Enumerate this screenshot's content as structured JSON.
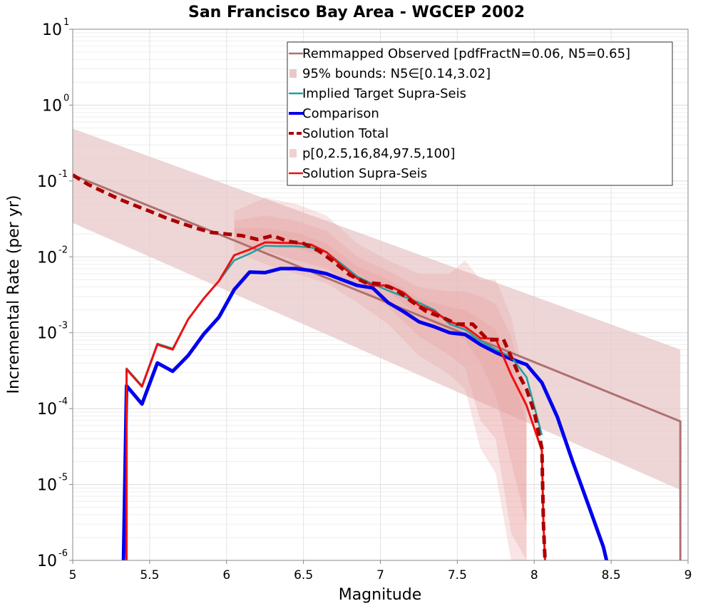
{
  "chart_data": {
    "type": "line",
    "title": "San Francisco Bay Area - WGCEP 2002",
    "xlabel": "Magnitude",
    "ylabel": "Incremental Rate (per yr)",
    "xlim": [
      5,
      9
    ],
    "ylim_log10": [
      -6,
      1
    ],
    "y_scale": "log",
    "grid": true,
    "legend_position": "top-right",
    "x_ticks": [
      "5",
      "5.5",
      "6",
      "6.5",
      "7",
      "7.5",
      "8",
      "8.5",
      "9"
    ],
    "y_ticks": [
      {
        "base": "10",
        "exp": "1"
      },
      {
        "base": "10",
        "exp": "0"
      },
      {
        "base": "10",
        "exp": "-1"
      },
      {
        "base": "10",
        "exp": "-2"
      },
      {
        "base": "10",
        "exp": "-3"
      },
      {
        "base": "10",
        "exp": "-4"
      },
      {
        "base": "10",
        "exp": "-5"
      },
      {
        "base": "10",
        "exp": "-6"
      }
    ],
    "legend": [
      {
        "label": "Remmapped Observed [pdfFractN=0.06, N5=0.65]",
        "kind": "line",
        "color": "#b07070"
      },
      {
        "label": "95% bounds: N5∈[0.14,3.02]",
        "kind": "band",
        "color": "#e8c8c8"
      },
      {
        "label": "Implied Target Supra-Seis",
        "kind": "line",
        "color": "#20a0a0"
      },
      {
        "label": "Comparison",
        "kind": "thick-line",
        "color": "#0000ee"
      },
      {
        "label": "Solution Total",
        "kind": "dashed",
        "color": "#aa0000"
      },
      {
        "label": "p[0,2.5,16,84,97.5,100]",
        "kind": "band",
        "color": "#f0d0d0"
      },
      {
        "label": "Solution Supra-Seis",
        "kind": "line",
        "color": "#ee1111"
      }
    ],
    "series": [
      {
        "name": "Remmapped Observed [pdfFractN=0.06, N5=0.65]",
        "color": "#b07070",
        "x": [
          5.0,
          8.95,
          8.95
        ],
        "y": [
          0.12,
          6.8e-05,
          1e-06
        ]
      },
      {
        "name": "95% bounds: N5∈[0.14,3.02]",
        "color": "#e8c8c8",
        "x": [
          5.0,
          8.95
        ],
        "lower": [
          0.028,
          8.5e-06
        ],
        "upper": [
          0.49,
          0.0006
        ]
      },
      {
        "name": "p[0,2.5,16,84,97.5,100]",
        "color": "#e9a0a0",
        "x": [
          6.05,
          6.25,
          6.45,
          6.65,
          6.85,
          7.05,
          7.25,
          7.45,
          7.55,
          7.65,
          7.75,
          7.85,
          7.95
        ],
        "bands": [
          {
            "lower": [
              0.012,
              0.008,
              0.006,
              0.0045,
              0.0025,
              0.0013,
              0.0005,
              0.00028,
              0.00018,
              3e-05,
              1.4e-05,
              1e-06,
              1e-06
            ],
            "upper": [
              0.04,
              0.06,
              0.05,
              0.035,
              0.015,
              0.009,
              0.006,
              0.006,
              0.009,
              0.005,
              0.005,
              0.0016,
              0.0002
            ]
          },
          {
            "lower": [
              0.016,
              0.012,
              0.009,
              0.007,
              0.004,
              0.0022,
              0.0009,
              0.0005,
              0.00035,
              7e-05,
              4e-05,
              2.3e-06,
              1e-06
            ],
            "upper": [
              0.03,
              0.035,
              0.03,
              0.022,
              0.01,
              0.0065,
              0.004,
              0.0035,
              0.0035,
              0.003,
              0.0024,
              0.0009,
              0.00012
            ]
          },
          {
            "lower": [
              0.02,
              0.016,
              0.013,
              0.01,
              0.006,
              0.0035,
              0.0017,
              0.001,
              0.0008,
              0.0004,
              0.00015,
              2e-05,
              3e-06
            ],
            "upper": [
              0.024,
              0.024,
              0.021,
              0.015,
              0.0075,
              0.005,
              0.0028,
              0.0022,
              0.002,
              0.0015,
              0.0011,
              0.0004,
              6e-05
            ]
          }
        ]
      },
      {
        "name": "Implied Target Supra-Seis",
        "color": "#20a0a0",
        "x": [
          5.35,
          5.35,
          5.45,
          5.55,
          5.65,
          5.75,
          5.85,
          5.95,
          6.05,
          6.15,
          6.25,
          6.35,
          6.45,
          6.55,
          6.65,
          6.75,
          6.85,
          6.95,
          7.05,
          7.15,
          7.25,
          7.35,
          7.45,
          7.55,
          7.65,
          7.75,
          7.85,
          7.95,
          8.05
        ],
        "y": [
          1e-06,
          0.00034,
          0.0002,
          0.00072,
          0.00062,
          0.0015,
          0.0028,
          0.0048,
          0.009,
          0.011,
          0.014,
          0.0138,
          0.0138,
          0.0133,
          0.0115,
          0.008,
          0.0055,
          0.0044,
          0.0036,
          0.003,
          0.0025,
          0.002,
          0.0013,
          0.0011,
          0.00078,
          0.0006,
          0.00048,
          0.00026,
          4.5e-05
        ]
      },
      {
        "name": "Comparison",
        "color": "#0000ee",
        "x": [
          5.33,
          5.35,
          5.45,
          5.55,
          5.65,
          5.75,
          5.85,
          5.95,
          6.05,
          6.15,
          6.25,
          6.35,
          6.45,
          6.55,
          6.65,
          6.75,
          6.85,
          6.95,
          7.05,
          7.15,
          7.25,
          7.35,
          7.45,
          7.55,
          7.65,
          7.75,
          7.85,
          7.95,
          8.05,
          8.15,
          8.25,
          8.35,
          8.45,
          8.47
        ],
        "y": [
          1e-06,
          0.0002,
          0.000115,
          0.0004,
          0.00031,
          0.0005,
          0.00095,
          0.0016,
          0.0037,
          0.0063,
          0.0062,
          0.007,
          0.007,
          0.0066,
          0.006,
          0.005,
          0.0042,
          0.0039,
          0.0025,
          0.0019,
          0.0014,
          0.0012,
          0.001,
          0.00095,
          0.0007,
          0.00055,
          0.00045,
          0.00038,
          0.00022,
          7.8e-05,
          2e-05,
          5.5e-06,
          1.5e-06,
          1e-06
        ]
      },
      {
        "name": "Solution Total",
        "color": "#aa0000",
        "x": [
          5.0,
          5.1,
          5.2,
          5.3,
          5.4,
          5.5,
          5.6,
          5.7,
          5.8,
          5.9,
          6.0,
          6.1,
          6.2,
          6.3,
          6.4,
          6.5,
          6.6,
          6.7,
          6.8,
          6.9,
          7.0,
          7.1,
          7.2,
          7.3,
          7.4,
          7.5,
          7.6,
          7.7,
          7.8,
          7.9,
          7.95,
          8.0,
          8.05,
          8.06,
          8.07
        ],
        "y": [
          0.12,
          0.09,
          0.072,
          0.058,
          0.048,
          0.04,
          0.033,
          0.028,
          0.024,
          0.021,
          0.02,
          0.019,
          0.017,
          0.019,
          0.016,
          0.015,
          0.012,
          0.0085,
          0.0058,
          0.0046,
          0.0044,
          0.0037,
          0.0026,
          0.0019,
          0.0016,
          0.0013,
          0.0013,
          0.0008,
          0.00082,
          0.00028,
          0.00018,
          9e-05,
          3e-05,
          3e-06,
          1e-06
        ]
      },
      {
        "name": "Solution Supra-Seis",
        "color": "#ee1111",
        "x": [
          5.35,
          5.35,
          5.45,
          5.55,
          5.65,
          5.75,
          5.85,
          5.95,
          6.05,
          6.15,
          6.25,
          6.35,
          6.45,
          6.55,
          6.65,
          6.75,
          6.85,
          6.95,
          7.05,
          7.15,
          7.25,
          7.35,
          7.45,
          7.55,
          7.65,
          7.75,
          7.85,
          7.95,
          8.05,
          8.06,
          8.07
        ],
        "y": [
          1e-06,
          0.00033,
          0.000195,
          0.0007,
          0.0006,
          0.0015,
          0.0028,
          0.0048,
          0.0105,
          0.0125,
          0.0155,
          0.0153,
          0.0152,
          0.0145,
          0.0115,
          0.0075,
          0.0052,
          0.0042,
          0.0042,
          0.0034,
          0.0023,
          0.0019,
          0.0014,
          0.0012,
          0.00085,
          0.00083,
          0.00028,
          0.00011,
          2.8e-05,
          3e-06,
          1e-06
        ]
      }
    ]
  }
}
